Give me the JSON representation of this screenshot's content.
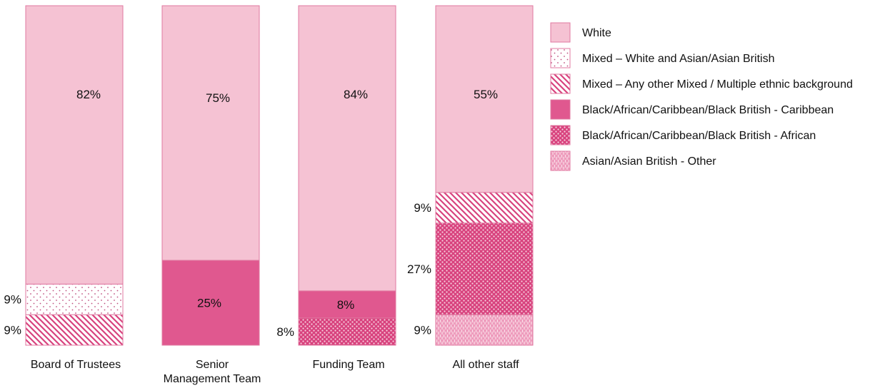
{
  "chart_data": {
    "type": "stacked-bar-100",
    "categories": [
      [
        "Board of Trustees"
      ],
      [
        "Senior",
        "Management Team"
      ],
      [
        "Funding Team"
      ],
      [
        "All other staff"
      ]
    ],
    "series": [
      {
        "name": "Asian/Asian British - Other",
        "pattern": "vlines",
        "values": [
          0,
          0,
          0,
          9
        ],
        "labels": [
          "",
          "",
          "",
          "9%"
        ]
      },
      {
        "name": "Black/African/Caribbean/Black British - African",
        "pattern": "dots",
        "values": [
          0,
          0,
          8,
          27
        ],
        "labels": [
          "",
          "",
          "8%",
          "27%"
        ]
      },
      {
        "name": "Black/African/Caribbean/Black British - Caribbean",
        "pattern": "solid",
        "values": [
          0,
          25,
          8,
          0
        ],
        "labels": [
          "",
          "25%",
          "8%",
          ""
        ]
      },
      {
        "name": "Mixed – Any other Mixed / Multiple ethnic background",
        "pattern": "diag",
        "values": [
          9,
          0,
          0,
          9
        ],
        "labels": [
          "9%",
          "",
          "",
          "9%"
        ]
      },
      {
        "name": "Mixed – White and Asian/Asian British",
        "pattern": "sparse-dots",
        "values": [
          9,
          0,
          0,
          0
        ],
        "labels": [
          "9%",
          "",
          "",
          ""
        ]
      },
      {
        "name": "White",
        "pattern": "solid-light",
        "values": [
          82,
          75,
          84,
          55
        ],
        "labels": [
          "82%",
          "75%",
          "84%",
          "55%"
        ]
      }
    ],
    "legend_order": [
      "White",
      "Mixed – White and Asian/Asian British",
      "Mixed – Any other Mixed / Multiple ethnic background",
      "Black/African/Caribbean/Black British - Caribbean",
      "Black/African/Caribbean/Black British - African",
      "Asian/Asian British - Other"
    ],
    "legend_position": "right",
    "ylim": [
      0,
      100
    ],
    "grid": false,
    "colors": {
      "light": "#f5c2d3",
      "mid": "#e0588f",
      "dark": "#d8437e",
      "border": "#e07aa2",
      "pattern_bg_pink": "#f3b3c9"
    }
  }
}
